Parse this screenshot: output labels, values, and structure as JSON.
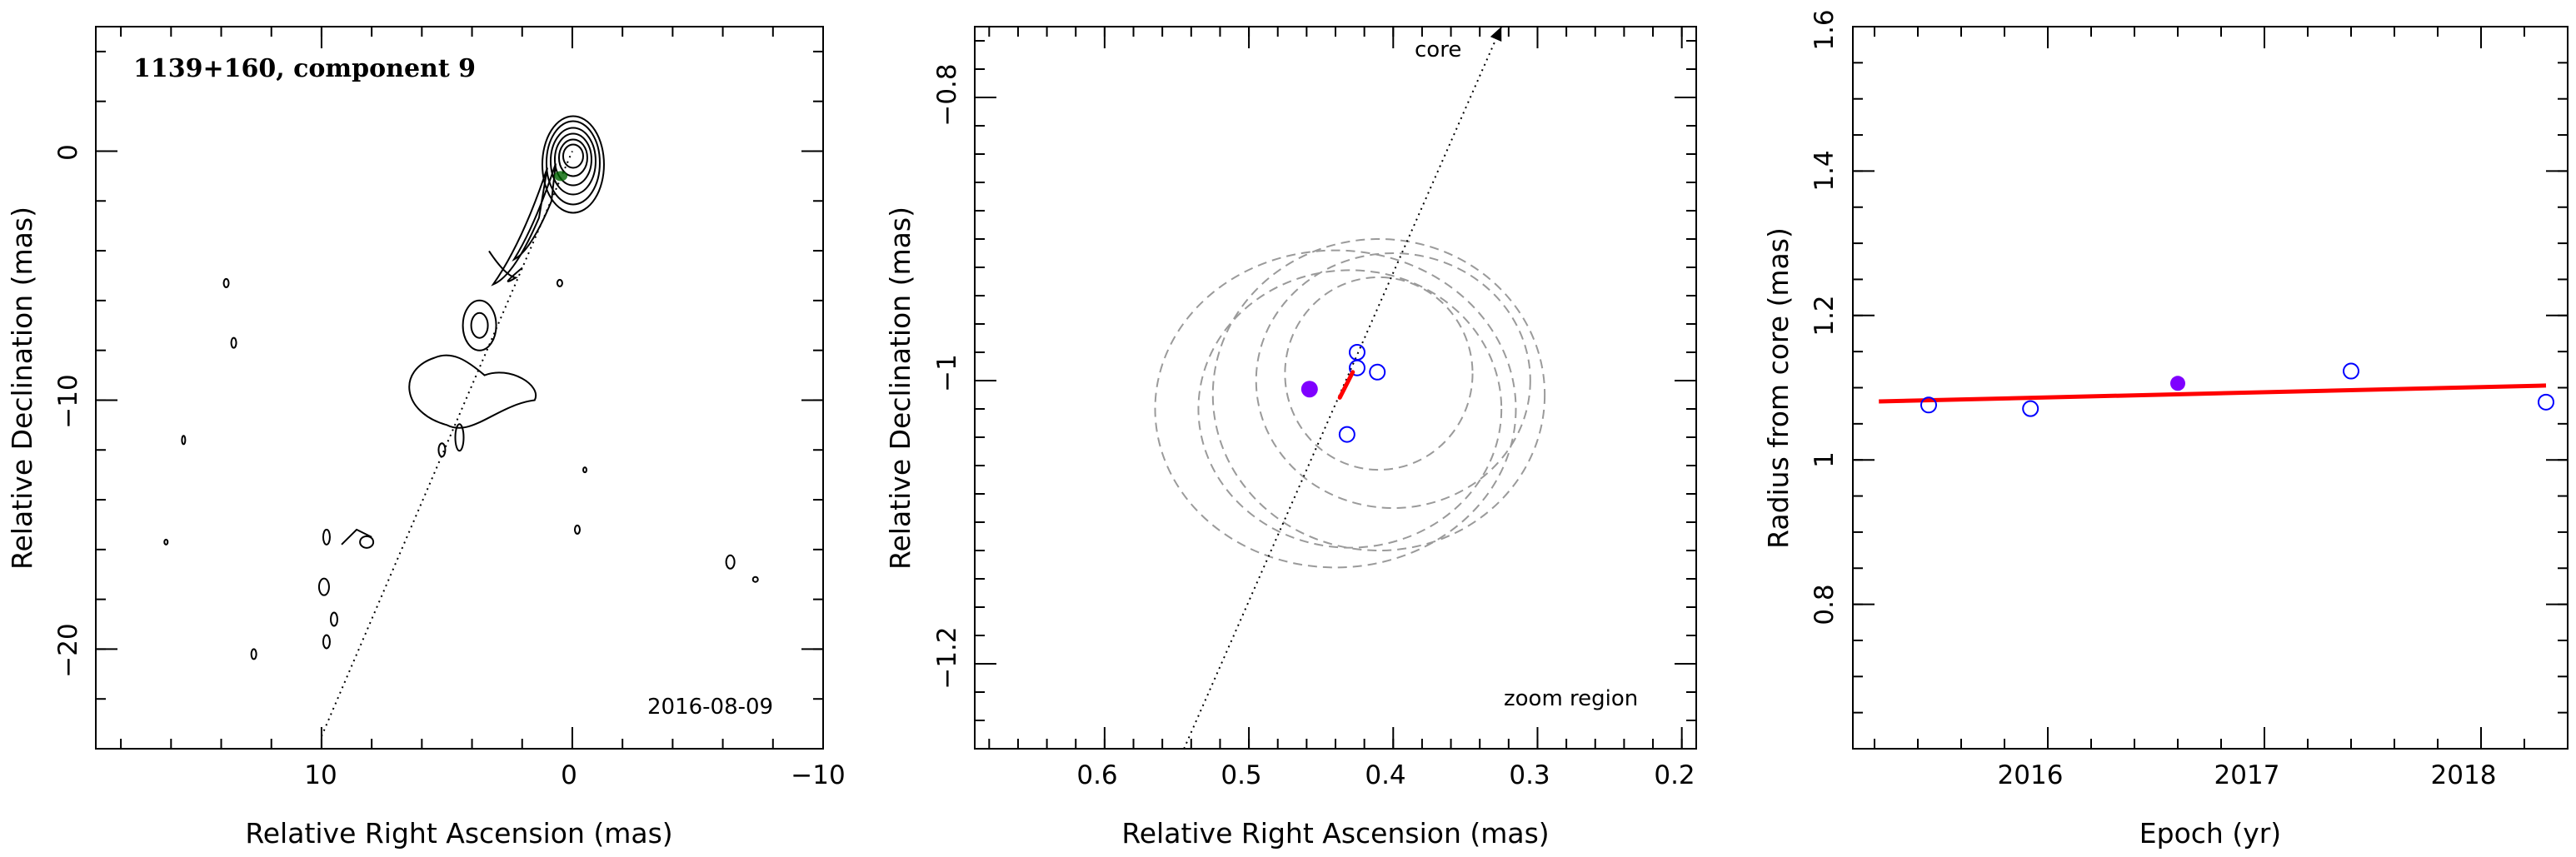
{
  "chart_data": [
    {
      "type": "contour",
      "title": "1139+160, component 9",
      "date_label": "2016-08-09",
      "xlabel": "Relative Right Ascension (mas)",
      "ylabel": "Relative Declination (mas)",
      "xlim": [
        19,
        -10
      ],
      "ylim": [
        -24,
        5
      ],
      "xticks": [
        "10",
        "0",
        "−10"
      ],
      "yticks": [
        "0",
        "−10",
        "−20"
      ],
      "component_position": [
        0.46,
        -1.0
      ],
      "direction_line": {
        "from": [
          10,
          -23.5
        ],
        "to": [
          0,
          0
        ]
      }
    },
    {
      "type": "scatter",
      "label": "core",
      "note": "zoom region",
      "xlabel": "Relative Right Ascension (mas)",
      "ylabel": "Relative Declination (mas)",
      "xlim": [
        0.69,
        0.19
      ],
      "ylim": [
        -1.26,
        -0.75
      ],
      "xticks": [
        "0.6",
        "0.5",
        "0.4",
        "0.3",
        "0.2"
      ],
      "yticks": [
        "−0.8",
        "−1",
        "−1.2"
      ],
      "highlight_point": {
        "x": 0.458,
        "y": -1.006
      },
      "points": [
        {
          "x": 0.425,
          "y": -0.98
        },
        {
          "x": 0.425,
          "y": -0.991
        },
        {
          "x": 0.411,
          "y": -0.994
        },
        {
          "x": 0.432,
          "y": -1.038
        }
      ],
      "error_ellipses": [
        {
          "cx": 0.41,
          "cy": -0.995,
          "rx": 0.065,
          "ry": 0.068
        },
        {
          "cx": 0.4,
          "cy": -1.0,
          "rx": 0.095,
          "ry": 0.09
        },
        {
          "cx": 0.43,
          "cy": -1.02,
          "rx": 0.105,
          "ry": 0.098
        },
        {
          "cx": 0.41,
          "cy": -1.01,
          "rx": 0.115,
          "ry": 0.11
        },
        {
          "cx": 0.44,
          "cy": -1.02,
          "rx": 0.125,
          "ry": 0.112
        }
      ],
      "velocity_vector": {
        "from": [
          0.437,
          -1.012
        ],
        "to": [
          0.428,
          -0.994
        ]
      },
      "core_direction": {
        "from": [
          0.545,
          -1.26
        ],
        "to": [
          0.325,
          -0.75
        ]
      }
    },
    {
      "type": "scatter",
      "xlabel": "Epoch (yr)",
      "ylabel": "Radius from core (mas)",
      "xlim": [
        2015.1,
        2018.4
      ],
      "ylim": [
        0.6,
        1.6
      ],
      "xticks": [
        "2016",
        "2017",
        "2018"
      ],
      "yticks": [
        "0.8",
        "1",
        "1.2",
        "1.4",
        "1.6"
      ],
      "highlight_point": {
        "x": 2016.6,
        "y": 1.106
      },
      "points": [
        {
          "x": 2015.45,
          "y": 1.076
        },
        {
          "x": 2015.92,
          "y": 1.071
        },
        {
          "x": 2017.4,
          "y": 1.123
        },
        {
          "x": 2018.3,
          "y": 1.08
        }
      ],
      "fit_line": {
        "x": [
          2015.22,
          2018.3
        ],
        "y": [
          1.081,
          1.103
        ]
      }
    }
  ],
  "colors": {
    "highlight": "#7f00ff",
    "open_points": "#0000ff",
    "fit": "#ff0000",
    "ellipse": "#9a9a9a",
    "component_marker": "#006400"
  }
}
